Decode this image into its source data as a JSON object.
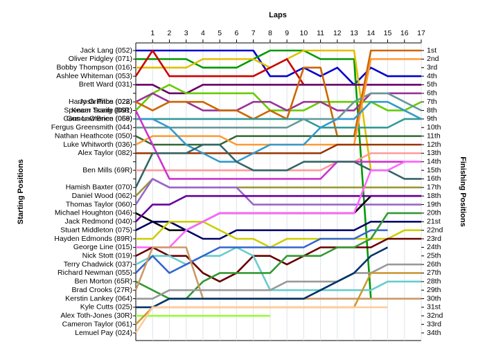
{
  "chart_data": {
    "type": "line",
    "title": "Laps",
    "y_label": "Starting Positions",
    "y2_label": "Finishing Positions",
    "x": [
      0,
      1,
      2,
      3,
      4,
      5,
      6,
      7,
      8,
      9,
      10,
      11,
      12,
      13,
      14,
      15,
      16,
      17
    ],
    "xlim": [
      0,
      17
    ],
    "xticks": [
      1,
      2,
      3,
      4,
      5,
      6,
      7,
      8,
      9,
      10,
      11,
      12,
      13,
      14,
      15,
      16,
      17
    ],
    "ylim": [
      34,
      1
    ],
    "grid": true,
    "yticks": [
      {
        "value": 1,
        "label": "1st"
      },
      {
        "value": 2,
        "label": "2nd"
      },
      {
        "value": 3,
        "label": "3rd"
      },
      {
        "value": 4,
        "label": "4th"
      },
      {
        "value": 5,
        "label": "5th"
      },
      {
        "value": 6,
        "label": "6th"
      },
      {
        "value": 7,
        "label": "7th"
      },
      {
        "value": 8,
        "label": "8th"
      },
      {
        "value": 9,
        "label": "9th"
      },
      {
        "value": 10,
        "label": "10th"
      },
      {
        "value": 11,
        "label": "11th"
      },
      {
        "value": 12,
        "label": "12th"
      },
      {
        "value": 13,
        "label": "13th"
      },
      {
        "value": 14,
        "label": "14th"
      },
      {
        "value": 15,
        "label": "15th"
      },
      {
        "value": 16,
        "label": "16th"
      },
      {
        "value": 17,
        "label": "17th"
      },
      {
        "value": 18,
        "label": "18th"
      },
      {
        "value": 19,
        "label": "19th"
      },
      {
        "value": 20,
        "label": "20th"
      },
      {
        "value": 21,
        "label": "21st"
      },
      {
        "value": 22,
        "label": "22nd"
      },
      {
        "value": 23,
        "label": "23rd"
      },
      {
        "value": 24,
        "label": "24th"
      },
      {
        "value": 25,
        "label": "25th"
      },
      {
        "value": 26,
        "label": "26th"
      },
      {
        "value": 27,
        "label": "27th"
      },
      {
        "value": 28,
        "label": "28th"
      },
      {
        "value": 29,
        "label": "29th"
      },
      {
        "value": 30,
        "label": "30th"
      },
      {
        "value": 31,
        "label": "31st"
      },
      {
        "value": 32,
        "label": "32nd"
      },
      {
        "value": 33,
        "label": "33rd"
      },
      {
        "value": 34,
        "label": "34th"
      }
    ],
    "series": [
      {
        "name": "Jack Lang (052)",
        "color": "#0000cc",
        "values": [
          1,
          1,
          1,
          1,
          1,
          1,
          1,
          1,
          4,
          4,
          3,
          4,
          3,
          5,
          3,
          4,
          4,
          4
        ]
      },
      {
        "name": "Oliver Pidgley (071)",
        "color": "#009900",
        "values": [
          2,
          2,
          2,
          2,
          3,
          3,
          3,
          2,
          1,
          1,
          1,
          2,
          2,
          2,
          30,
          null,
          null,
          null
        ]
      },
      {
        "name": "Bobby Thompson (016)",
        "color": "#e0c000",
        "values": [
          3,
          3,
          3,
          3,
          2,
          2,
          2,
          2,
          3,
          2,
          1,
          1,
          1,
          1,
          15,
          null,
          null,
          null
        ]
      },
      {
        "name": "Ashlee Whiteman (053)",
        "color": "#cc0000",
        "values": [
          4,
          1,
          4,
          4,
          4,
          4,
          4,
          4,
          3,
          2,
          5,
          null,
          null,
          null,
          null,
          null,
          null,
          null
        ]
      },
      {
        "name": "Brett Ward (031)",
        "color": "#660066",
        "values": [
          5,
          5,
          6,
          6,
          5,
          5,
          5,
          5,
          5,
          5,
          5,
          5,
          5,
          5,
          5,
          5,
          5,
          5
        ]
      },
      {
        "name": "Kearn Tsang (86R)",
        "color": "#66cc00",
        "values": [
          8,
          6,
          5,
          6,
          6,
          6,
          6,
          6,
          8,
          8,
          8,
          7,
          7,
          7,
          7,
          8,
          8,
          7
        ]
      },
      {
        "name": "Josh Price (028)",
        "color": "#993399",
        "values": [
          7,
          6,
          7,
          7,
          8,
          8,
          8,
          7,
          7,
          8,
          7,
          7,
          8,
          8,
          6,
          6,
          6,
          6
        ]
      },
      {
        "name": "Harry Griffiths (022)",
        "color": "#cc6600",
        "values": [
          7,
          8,
          7,
          7,
          7,
          8,
          8,
          9,
          8,
          9,
          3,
          3,
          11,
          11,
          1,
          1,
          1,
          1
        ]
      },
      {
        "name": "Connor O'Brien (059)",
        "color": "#339999",
        "values": [
          9,
          9,
          9,
          9,
          9,
          9,
          9,
          9,
          9,
          9,
          9,
          10,
          10,
          10,
          10,
          10,
          9,
          9
        ]
      },
      {
        "name": "Fergus Greensmith (044)",
        "color": "#669999",
        "values": [
          10,
          10,
          10,
          10,
          10,
          10,
          10,
          10,
          10,
          10,
          9,
          9,
          9,
          7,
          6,
          6,
          7,
          8
        ]
      },
      {
        "name": "Nathan Heathcote (050)",
        "color": "#336633",
        "values": [
          11,
          12,
          12,
          12,
          12,
          12,
          11,
          11,
          11,
          11,
          11,
          11,
          11,
          11,
          11,
          11,
          11,
          11
        ]
      },
      {
        "name": "Luke Whitworth (036)",
        "color": "#ff9933",
        "values": [
          12,
          11,
          11,
          11,
          11,
          11,
          12,
          12,
          12,
          12,
          12,
          12,
          12,
          12,
          2,
          2,
          2,
          2
        ]
      },
      {
        "name": "Alex Taylor (082)",
        "color": "#993300",
        "values": [
          13,
          13,
          13,
          13,
          13,
          13,
          13,
          13,
          13,
          13,
          13,
          13,
          12,
          12,
          12,
          12,
          12,
          12
        ]
      },
      {
        "name": "Gus Lawrence (068)",
        "color": "#3399cc",
        "values": [
          9,
          9,
          10,
          12,
          13,
          14,
          14,
          13,
          12,
          12,
          12,
          10,
          9,
          9,
          7,
          7,
          8,
          9
        ]
      },
      {
        "name": "Ben Mills (69R)",
        "color": "#ff9999",
        "values": [
          15,
          15,
          15,
          15,
          15,
          15,
          15,
          15,
          15,
          15,
          15,
          15,
          14,
          14,
          13,
          13,
          13,
          13
        ]
      },
      {
        "name": "Spencer Scaife (091)",
        "color": "#cc33cc",
        "values": [
          8,
          12,
          16,
          16,
          16,
          16,
          16,
          16,
          16,
          16,
          16,
          16,
          14,
          14,
          14,
          14,
          14,
          14
        ]
      },
      {
        "name": "Hamish Baxter (070)",
        "color": "#336666",
        "values": [
          17,
          13,
          13,
          13,
          12,
          12,
          14,
          15,
          15,
          15,
          14,
          14,
          14,
          14,
          15,
          15,
          16,
          16
        ]
      },
      {
        "name": "Daniel Wood (062)",
        "color": "#999933",
        "values": [
          18,
          16,
          17,
          17,
          17,
          17,
          17,
          17,
          17,
          17,
          17,
          17,
          17,
          17,
          17,
          17,
          17,
          17
        ]
      },
      {
        "name": "Thomas Taylor (060)",
        "color": "#9966cc",
        "values": [
          19,
          16,
          17,
          17,
          17,
          17,
          17,
          19,
          19,
          19,
          19,
          19,
          19,
          19,
          19,
          19,
          19,
          19
        ]
      },
      {
        "name": "Michael Houghton (046)",
        "color": "#000000",
        "values": [
          20,
          21,
          22,
          22,
          21,
          20,
          20,
          20,
          20,
          20,
          20,
          20,
          20,
          20,
          18,
          18,
          18,
          18
        ]
      },
      {
        "name": "Jack Redmond (040)",
        "color": "#660099",
        "values": [
          21,
          19,
          19,
          18,
          18,
          18,
          18,
          18,
          18,
          18,
          18,
          18,
          18,
          18,
          18,
          18,
          18,
          18
        ]
      },
      {
        "name": "Stuart Middleton (075)",
        "color": "#000066",
        "values": [
          22,
          21,
          21,
          22,
          23,
          23,
          22,
          22,
          22,
          22,
          22,
          22,
          22,
          22,
          21,
          21,
          21,
          21
        ]
      },
      {
        "name": "Hayden Edmonds (89R)",
        "color": "#cccc00",
        "values": [
          23,
          23,
          21,
          21,
          21,
          22,
          23,
          23,
          24,
          23,
          23,
          23,
          23,
          23,
          23,
          23,
          22,
          22
        ]
      },
      {
        "name": "George Line (015)",
        "color": "#ff66ff",
        "values": [
          24,
          24,
          24,
          22,
          21,
          20,
          20,
          20,
          20,
          20,
          20,
          20,
          20,
          20,
          15,
          15,
          14,
          14
        ]
      },
      {
        "name": "Nick Stott (019)",
        "color": "#660000",
        "values": [
          25,
          24,
          25,
          25,
          27,
          28,
          27,
          25,
          25,
          26,
          25,
          24,
          24,
          24,
          24,
          23,
          23,
          23
        ]
      },
      {
        "name": "Terry Chadwick (037)",
        "color": "#66cccc",
        "values": [
          26,
          25,
          25,
          26,
          25,
          25,
          24,
          25,
          29,
          29,
          29,
          29,
          29,
          29,
          29,
          28,
          28,
          28
        ]
      },
      {
        "name": "Richard Newman (055)",
        "color": "#3366cc",
        "values": [
          27,
          25,
          27,
          26,
          25,
          24,
          24,
          24,
          24,
          24,
          24,
          23,
          23,
          23,
          22,
          22,
          null,
          null
        ]
      },
      {
        "name": "Ben Morton (65R)",
        "color": "#339933",
        "values": [
          28,
          29,
          30,
          30,
          28,
          27,
          27,
          27,
          27,
          25,
          25,
          25,
          24,
          24,
          23,
          20,
          20,
          20
        ]
      },
      {
        "name": "Brad Crooks (27R)",
        "color": "#cc9966",
        "values": [
          29,
          24,
          24,
          24,
          30,
          30,
          30,
          30,
          30,
          30,
          30,
          30,
          30,
          30,
          30,
          30,
          30,
          30
        ]
      },
      {
        "name": "Kerstin Lankey (064)",
        "color": "#999999",
        "values": [
          30,
          30,
          29,
          29,
          29,
          29,
          29,
          29,
          29,
          28,
          28,
          28,
          28,
          27,
          27,
          26,
          26,
          26
        ]
      },
      {
        "name": "Kyle Cutts (025)",
        "color": "#003366",
        "values": [
          31,
          31,
          30,
          30,
          30,
          30,
          30,
          30,
          30,
          30,
          30,
          29,
          28,
          27,
          25,
          24,
          null,
          null
        ]
      },
      {
        "name": "Alex Toth-Jones (30R)",
        "color": "#99ff33",
        "values": [
          32,
          32,
          32,
          32,
          32,
          32,
          32,
          32,
          32,
          null,
          null,
          null,
          null,
          null,
          null,
          null,
          null,
          null
        ]
      },
      {
        "name": "Cameron Taylor (061)",
        "color": "#cc9933",
        "values": [
          33,
          31,
          31,
          31,
          31,
          31,
          31,
          31,
          31,
          31,
          31,
          31,
          31,
          31,
          27,
          27,
          27,
          27
        ]
      },
      {
        "name": "Lemuel Pay (024)",
        "color": "#ffcc99",
        "values": [
          34,
          31,
          31,
          31,
          31,
          31,
          31,
          31,
          31,
          31,
          31,
          31,
          31,
          31,
          31,
          31,
          null,
          null
        ]
      }
    ]
  }
}
